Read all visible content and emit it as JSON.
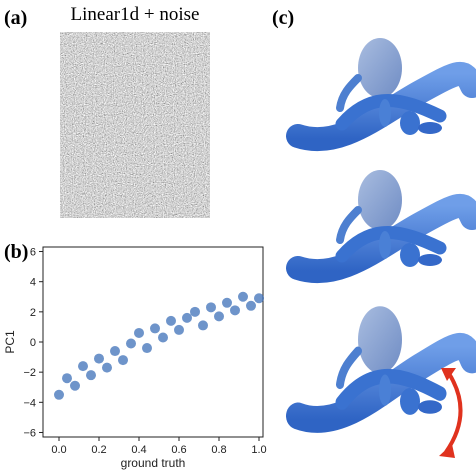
{
  "panels": {
    "a": {
      "label": "(a)",
      "title": "Linear1d + noise"
    },
    "b": {
      "label": "(b)"
    },
    "c": {
      "label": "(c)"
    }
  },
  "chart_data": {
    "type": "scatter",
    "xlabel": "ground truth",
    "ylabel": "PC1",
    "color": "#3d70b8",
    "x": [
      0,
      0.04,
      0.08,
      0.12,
      0.16,
      0.2,
      0.24,
      0.28,
      0.32,
      0.36,
      0.4,
      0.44,
      0.48,
      0.52,
      0.56,
      0.6,
      0.64,
      0.68,
      0.72,
      0.76,
      0.8,
      0.84,
      0.88,
      0.92,
      0.96,
      1.0
    ],
    "values": [
      -3.5,
      -2.4,
      -2.9,
      -1.6,
      -2.2,
      -1.1,
      -1.7,
      -0.6,
      -1.2,
      -0.1,
      0.6,
      -0.4,
      0.9,
      0.3,
      1.4,
      0.8,
      1.6,
      2.0,
      1.1,
      2.3,
      1.7,
      2.6,
      2.1,
      3.0,
      2.4,
      2.9
    ],
    "xlim": [
      -0.08,
      1.02
    ],
    "ylim": [
      -6.3,
      6.3
    ],
    "xticks": [
      {
        "value": 0,
        "label": "0.0"
      },
      {
        "value": 0.2,
        "label": "0.2"
      },
      {
        "value": 0.4,
        "label": "0.4"
      },
      {
        "value": 0.6,
        "label": "0.6"
      },
      {
        "value": 0.8,
        "label": "0.8"
      },
      {
        "value": 1.0,
        "label": "1.0"
      }
    ],
    "yticks": [
      {
        "value": -6,
        "label": "−6"
      },
      {
        "value": -4,
        "label": "−4"
      },
      {
        "value": -2,
        "label": "−2"
      },
      0,
      2,
      4,
      6
    ]
  }
}
